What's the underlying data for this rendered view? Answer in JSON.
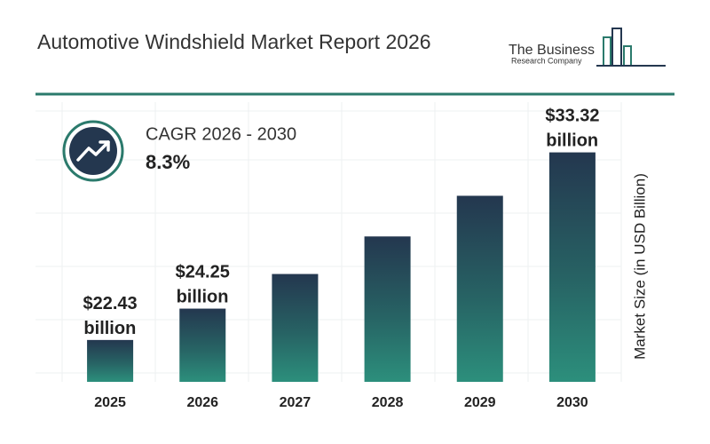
{
  "chart_data": {
    "type": "bar",
    "title": "Automotive Windshield Market Report 2026",
    "logo": {
      "line1": "The Business",
      "line2": "Research Company"
    },
    "cagr_label": "CAGR 2026 - 2030",
    "cagr_value": "8.3%",
    "y_label": "Market Size (in USD Billion)",
    "categories": [
      "2025",
      "2026",
      "2027",
      "2028",
      "2029",
      "2030"
    ],
    "values": [
      22.43,
      24.25,
      26.26,
      28.44,
      30.8,
      33.32
    ],
    "value_labels": [
      "$22.43 billion",
      "$24.25 billion",
      null,
      null,
      null,
      "$33.32 billion"
    ],
    "ylim": [
      20,
      35
    ]
  }
}
